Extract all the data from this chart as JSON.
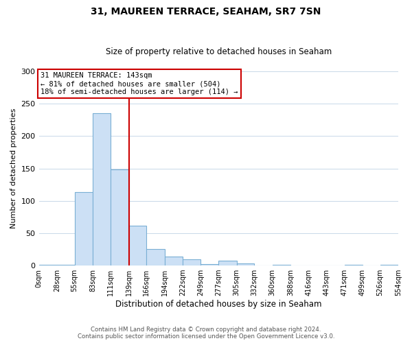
{
  "title": "31, MAUREEN TERRACE, SEAHAM, SR7 7SN",
  "subtitle": "Size of property relative to detached houses in Seaham",
  "xlabel": "Distribution of detached houses by size in Seaham",
  "ylabel": "Number of detached properties",
  "bin_edges": [
    0,
    28,
    55,
    83,
    111,
    139,
    166,
    194,
    222,
    249,
    277,
    305,
    332,
    360,
    388,
    416,
    443,
    471,
    499,
    526,
    554
  ],
  "bin_labels": [
    "0sqm",
    "28sqm",
    "55sqm",
    "83sqm",
    "111sqm",
    "139sqm",
    "166sqm",
    "194sqm",
    "222sqm",
    "249sqm",
    "277sqm",
    "305sqm",
    "332sqm",
    "360sqm",
    "388sqm",
    "416sqm",
    "443sqm",
    "471sqm",
    "499sqm",
    "526sqm",
    "554sqm"
  ],
  "counts": [
    1,
    1,
    113,
    235,
    148,
    62,
    25,
    14,
    10,
    2,
    8,
    3,
    0,
    1,
    0,
    0,
    0,
    1,
    0,
    1
  ],
  "bar_color": "#cce0f5",
  "bar_edge_color": "#7aafd4",
  "vline_x": 139,
  "vline_color": "#cc0000",
  "ylim": [
    0,
    300
  ],
  "yticks": [
    0,
    50,
    100,
    150,
    200,
    250,
    300
  ],
  "annotation_title": "31 MAUREEN TERRACE: 143sqm",
  "annotation_line1": "← 81% of detached houses are smaller (504)",
  "annotation_line2": "18% of semi-detached houses are larger (114) →",
  "footer1": "Contains HM Land Registry data © Crown copyright and database right 2024.",
  "footer2": "Contains public sector information licensed under the Open Government Licence v3.0."
}
